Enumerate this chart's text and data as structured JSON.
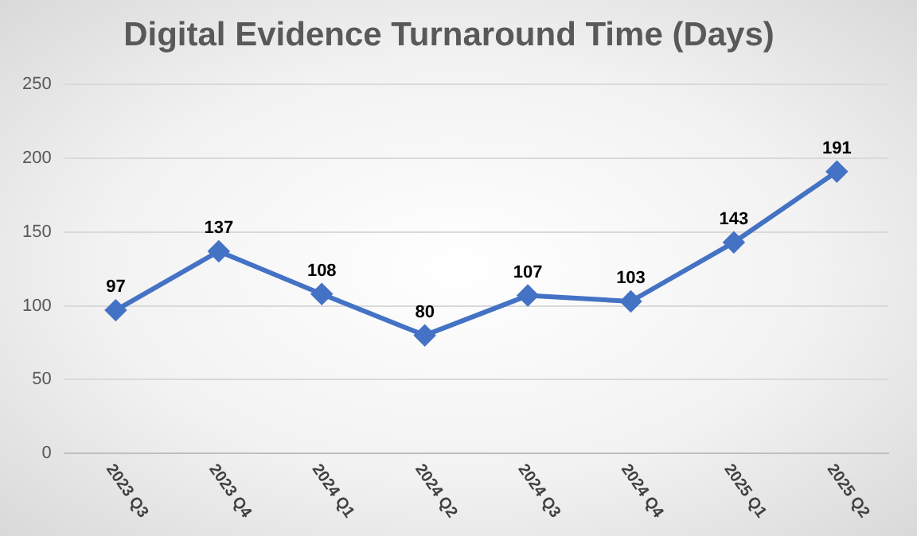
{
  "chart_data": {
    "type": "line",
    "title": "Digital Evidence Turnaround Time (Days)",
    "categories": [
      "2023 Q3",
      "2023 Q4",
      "2024 Q1",
      "2024 Q2",
      "2024 Q3",
      "2024 Q4",
      "2025 Q1",
      "2025 Q2"
    ],
    "values": [
      97,
      137,
      108,
      80,
      107,
      103,
      143,
      191
    ],
    "color": "#4472c4",
    "ylim": [
      0,
      250
    ],
    "yticks": [
      0,
      50,
      100,
      150,
      200,
      250
    ],
    "grid": "y",
    "marker": "diamond",
    "line_style": "solid",
    "data_labels": true,
    "legend": false
  }
}
